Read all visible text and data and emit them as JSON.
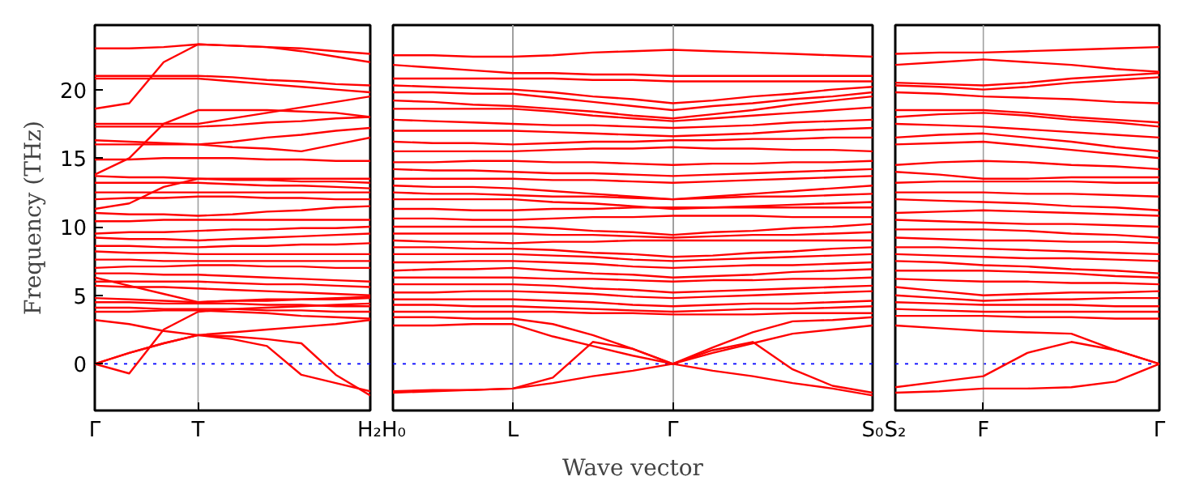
{
  "chart_data": [
    {
      "type": "line",
      "ylabel": "Frequency (THz)",
      "categories": [
        "Γ",
        null,
        null,
        "T",
        null,
        null,
        null,
        null,
        "H₂"
      ],
      "ylim": [
        -3.4,
        24.7
      ],
      "yticks": [
        0,
        5,
        10,
        15,
        20
      ],
      "ref_lines": [
        {
          "axis": "y",
          "value": 0,
          "label": null,
          "color": "#0000ff",
          "line_style": "dotted"
        },
        {
          "axis": "x",
          "value": "T",
          "label": null,
          "color": "#a0a0a0",
          "line_style": "solid"
        }
      ],
      "series": [
        {
          "color": "#ff0000",
          "values": [
            0,
            -0.7,
            2.5,
            3.8,
            4.0,
            4.1,
            4.2,
            4.3,
            4.4
          ]
        },
        {
          "color": "#ff0000",
          "values": [
            0,
            0.8,
            1.5,
            2.1,
            2.3,
            2.5,
            2.7,
            2.9,
            3.2
          ]
        },
        {
          "color": "#ff0000",
          "values": [
            3.2,
            2.9,
            2.4,
            2.1,
            1.8,
            1.3,
            -0.8,
            -1.4,
            -2.0
          ]
        },
        {
          "color": "#ff0000",
          "values": [
            0,
            0.8,
            1.5,
            2.1,
            2.0,
            1.8,
            1.5,
            -0.8,
            -2.3
          ]
        },
        {
          "color": "#ff0000",
          "values": [
            18.6,
            19.0,
            22.0,
            23.3,
            23.2,
            23.1,
            22.8,
            22.4,
            22.0
          ]
        },
        {
          "color": "#ff0000",
          "values": [
            23.0,
            23.0,
            23.1,
            23.3,
            23.2,
            23.1,
            23.0,
            22.8,
            22.6
          ]
        },
        {
          "color": "#ff0000",
          "values": [
            13.8,
            15.0,
            17.5,
            18.5,
            18.5,
            18.5,
            18.4,
            18.3,
            18.0
          ]
        },
        {
          "color": "#ff0000",
          "values": [
            11.3,
            11.7,
            12.9,
            13.5,
            13.4,
            13.4,
            13.3,
            13.3,
            13.2
          ]
        },
        {
          "color": "#ff0000",
          "values": [
            21.0,
            21.0,
            21.0,
            21.0,
            20.9,
            20.7,
            20.6,
            20.4,
            20.3
          ]
        },
        {
          "color": "#ff0000",
          "values": [
            20.8,
            20.8,
            20.8,
            20.8,
            20.6,
            20.4,
            20.2,
            20.0,
            19.8
          ]
        },
        {
          "color": "#ff0000",
          "values": [
            17.5,
            17.5,
            17.5,
            17.5,
            17.9,
            18.3,
            18.7,
            19.1,
            19.5
          ]
        },
        {
          "color": "#ff0000",
          "values": [
            17.3,
            17.3,
            17.3,
            17.3,
            17.4,
            17.6,
            17.7,
            17.9,
            18.0
          ]
        },
        {
          "color": "#ff0000",
          "values": [
            16.3,
            16.2,
            16.1,
            16.0,
            16.2,
            16.5,
            16.7,
            17.0,
            17.2
          ]
        },
        {
          "color": "#ff0000",
          "values": [
            16.0,
            16.0,
            16.0,
            16.0,
            15.8,
            15.7,
            15.5,
            16.0,
            16.5
          ]
        },
        {
          "color": "#ff0000",
          "values": [
            14.9,
            14.9,
            15.0,
            15.0,
            15.0,
            14.9,
            14.9,
            14.8,
            14.8
          ]
        },
        {
          "color": "#ff0000",
          "values": [
            13.7,
            13.6,
            13.6,
            13.5,
            13.5,
            13.5,
            13.5,
            13.5,
            13.5
          ]
        },
        {
          "color": "#ff0000",
          "values": [
            13.2,
            13.2,
            13.2,
            13.2,
            13.1,
            13.0,
            13.0,
            12.9,
            12.8
          ]
        },
        {
          "color": "#ff0000",
          "values": [
            12.5,
            12.5,
            12.5,
            12.5,
            12.5,
            12.5,
            12.5,
            12.5,
            12.5
          ]
        },
        {
          "color": "#ff0000",
          "values": [
            12.0,
            12.1,
            12.1,
            12.2,
            12.2,
            12.1,
            12.1,
            12.0,
            12.0
          ]
        },
        {
          "color": "#ff0000",
          "values": [
            11.0,
            10.9,
            10.9,
            10.8,
            10.9,
            11.1,
            11.2,
            11.4,
            11.5
          ]
        },
        {
          "color": "#ff0000",
          "values": [
            10.4,
            10.4,
            10.5,
            10.5,
            10.5,
            10.5,
            10.5,
            10.5,
            10.5
          ]
        },
        {
          "color": "#ff0000",
          "values": [
            9.5,
            9.6,
            9.6,
            9.7,
            9.8,
            9.8,
            9.9,
            9.9,
            10.0
          ]
        },
        {
          "color": "#ff0000",
          "values": [
            9.2,
            9.1,
            9.1,
            9.0,
            9.1,
            9.2,
            9.3,
            9.4,
            9.5
          ]
        },
        {
          "color": "#ff0000",
          "values": [
            8.6,
            8.6,
            8.5,
            8.5,
            8.6,
            8.6,
            8.7,
            8.7,
            8.8
          ]
        },
        {
          "color": "#ff0000",
          "values": [
            8.2,
            8.1,
            8.1,
            8.0,
            8.0,
            8.0,
            8.0,
            8.0,
            8.0
          ]
        },
        {
          "color": "#ff0000",
          "values": [
            7.6,
            7.6,
            7.5,
            7.5,
            7.5,
            7.5,
            7.5,
            7.5,
            7.5
          ]
        },
        {
          "color": "#ff0000",
          "values": [
            7.0,
            7.1,
            7.1,
            7.2,
            7.2,
            7.1,
            7.1,
            7.0,
            7.0
          ]
        },
        {
          "color": "#ff0000",
          "values": [
            6.6,
            6.6,
            6.5,
            6.5,
            6.4,
            6.3,
            6.2,
            6.1,
            6.0
          ]
        },
        {
          "color": "#ff0000",
          "values": [
            6.0,
            6.0,
            6.0,
            6.0,
            5.9,
            5.8,
            5.8,
            5.7,
            5.6
          ]
        },
        {
          "color": "#ff0000",
          "values": [
            5.7,
            5.6,
            5.6,
            5.5,
            5.4,
            5.3,
            5.2,
            5.1,
            5.0
          ]
        },
        {
          "color": "#ff0000",
          "values": [
            6.3,
            5.7,
            5.1,
            4.5,
            4.6,
            4.7,
            4.7,
            4.8,
            4.9
          ]
        },
        {
          "color": "#ff0000",
          "values": [
            4.8,
            4.7,
            4.6,
            4.5,
            4.6,
            4.6,
            4.7,
            4.7,
            4.8
          ]
        },
        {
          "color": "#ff0000",
          "values": [
            4.5,
            4.5,
            4.4,
            4.4,
            4.4,
            4.3,
            4.3,
            4.2,
            4.2
          ]
        },
        {
          "color": "#ff0000",
          "values": [
            4.1,
            4.1,
            4.0,
            4.0,
            4.0,
            3.9,
            3.9,
            3.8,
            3.8
          ]
        },
        {
          "color": "#ff0000",
          "values": [
            3.8,
            3.8,
            3.9,
            3.9,
            3.8,
            3.7,
            3.5,
            3.4,
            3.3
          ]
        }
      ]
    },
    {
      "type": "line",
      "xlabel": "Wave vector",
      "tick_labels": "x",
      "categories": [
        "H₀",
        null,
        null,
        "L",
        null,
        null,
        null,
        "Γ",
        null,
        null,
        null,
        null,
        "S₀"
      ],
      "ylim": [
        -3.4,
        24.7
      ],
      "yticks": [
        0,
        5,
        10,
        15,
        20
      ],
      "grid": "x",
      "ref_lines": [
        {
          "axis": "y",
          "value": 0,
          "label": null,
          "color": "#0000ff",
          "line_style": "dotted"
        }
      ],
      "series": [
        {
          "color": "#ff0000",
          "values": [
            -2.0,
            -1.9,
            -1.9,
            -1.8,
            -1.0,
            1.6,
            1.1,
            0,
            1.0,
            1.6,
            -0.4,
            -1.6,
            -2.1
          ]
        },
        {
          "color": "#ff0000",
          "values": [
            -2.1,
            -2.0,
            -1.9,
            -1.8,
            -1.4,
            -0.9,
            -0.5,
            0,
            -0.5,
            -0.9,
            -1.4,
            -1.8,
            -2.3
          ]
        },
        {
          "color": "#ff0000",
          "values": [
            2.8,
            2.8,
            2.9,
            2.9,
            2.0,
            1.3,
            0.6,
            0,
            0.8,
            1.5,
            2.2,
            2.5,
            2.8
          ]
        },
        {
          "color": "#ff0000",
          "values": [
            3.4,
            3.4,
            3.3,
            3.3,
            2.9,
            2.1,
            1.1,
            0,
            1.2,
            2.3,
            3.1,
            3.2,
            3.4
          ]
        },
        {
          "color": "#ff0000",
          "values": [
            22.5,
            22.5,
            22.4,
            22.4,
            22.5,
            22.7,
            22.8,
            22.9,
            22.8,
            22.7,
            22.6,
            22.5,
            22.4
          ]
        },
        {
          "color": "#ff0000",
          "values": [
            21.8,
            21.6,
            21.4,
            21.2,
            21.2,
            21.1,
            21.1,
            21.0,
            21.0,
            21.0,
            21.0,
            21.0,
            21.0
          ]
        },
        {
          "color": "#ff0000",
          "values": [
            20.8,
            20.8,
            20.8,
            20.8,
            20.8,
            20.7,
            20.7,
            20.6,
            20.6,
            20.6,
            20.6,
            20.6,
            20.6
          ]
        },
        {
          "color": "#ff0000",
          "values": [
            20.3,
            20.2,
            20.1,
            20.0,
            19.8,
            19.5,
            19.3,
            19.0,
            19.2,
            19.5,
            19.7,
            20.0,
            20.2
          ]
        },
        {
          "color": "#ff0000",
          "values": [
            19.8,
            19.8,
            19.7,
            19.7,
            19.4,
            19.1,
            18.8,
            18.5,
            18.8,
            19.0,
            19.3,
            19.5,
            19.8
          ]
        },
        {
          "color": "#ff0000",
          "values": [
            19.2,
            19.1,
            18.9,
            18.8,
            18.6,
            18.4,
            18.1,
            17.9,
            18.2,
            18.5,
            18.9,
            19.2,
            19.5
          ]
        },
        {
          "color": "#ff0000",
          "values": [
            18.6,
            18.6,
            18.6,
            18.6,
            18.4,
            18.1,
            17.9,
            17.7,
            17.9,
            18.1,
            18.3,
            18.5,
            18.7
          ]
        },
        {
          "color": "#ff0000",
          "values": [
            17.8,
            17.7,
            17.6,
            17.5,
            17.4,
            17.4,
            17.3,
            17.2,
            17.3,
            17.4,
            17.6,
            17.7,
            17.8
          ]
        },
        {
          "color": "#ff0000",
          "values": [
            17.0,
            17.0,
            17.0,
            17.0,
            16.9,
            16.8,
            16.7,
            16.6,
            16.7,
            16.8,
            17.0,
            17.1,
            17.2
          ]
        },
        {
          "color": "#ff0000",
          "values": [
            16.2,
            16.1,
            16.1,
            16.0,
            16.1,
            16.2,
            16.2,
            16.3,
            16.3,
            16.4,
            16.4,
            16.5,
            16.5
          ]
        },
        {
          "color": "#ff0000",
          "values": [
            15.5,
            15.5,
            15.5,
            15.5,
            15.6,
            15.7,
            15.7,
            15.8,
            15.7,
            15.7,
            15.6,
            15.6,
            15.5
          ]
        },
        {
          "color": "#ff0000",
          "values": [
            14.7,
            14.7,
            14.8,
            14.8,
            14.7,
            14.7,
            14.6,
            14.5,
            14.6,
            14.6,
            14.7,
            14.7,
            14.8
          ]
        },
        {
          "color": "#ff0000",
          "values": [
            14.2,
            14.1,
            14.1,
            14.0,
            13.9,
            13.9,
            13.8,
            13.7,
            13.8,
            13.9,
            14.0,
            14.1,
            14.2
          ]
        },
        {
          "color": "#ff0000",
          "values": [
            13.5,
            13.5,
            13.5,
            13.5,
            13.4,
            13.4,
            13.3,
            13.2,
            13.3,
            13.4,
            13.5,
            13.6,
            13.7
          ]
        },
        {
          "color": "#ff0000",
          "values": [
            13.0,
            12.9,
            12.9,
            12.8,
            12.6,
            12.4,
            12.2,
            12.0,
            12.2,
            12.4,
            12.6,
            12.8,
            13.0
          ]
        },
        {
          "color": "#ff0000",
          "values": [
            12.5,
            12.4,
            12.4,
            12.3,
            12.2,
            12.2,
            12.1,
            12.0,
            12.1,
            12.2,
            12.2,
            12.3,
            12.4
          ]
        },
        {
          "color": "#ff0000",
          "values": [
            12.0,
            12.0,
            12.0,
            12.0,
            11.8,
            11.7,
            11.5,
            11.3,
            11.4,
            11.5,
            11.6,
            11.7,
            11.8
          ]
        },
        {
          "color": "#ff0000",
          "values": [
            11.3,
            11.3,
            11.2,
            11.2,
            11.3,
            11.3,
            11.4,
            11.4,
            11.4,
            11.4,
            11.4,
            11.4,
            11.4
          ]
        },
        {
          "color": "#ff0000",
          "values": [
            10.6,
            10.6,
            10.5,
            10.5,
            10.6,
            10.7,
            10.7,
            10.8,
            10.8,
            10.8,
            10.7,
            10.7,
            10.7
          ]
        },
        {
          "color": "#ff0000",
          "values": [
            10.0,
            10.0,
            10.0,
            10.0,
            9.9,
            9.7,
            9.6,
            9.4,
            9.6,
            9.7,
            9.9,
            10.0,
            10.2
          ]
        },
        {
          "color": "#ff0000",
          "values": [
            9.5,
            9.5,
            9.5,
            9.5,
            9.4,
            9.4,
            9.3,
            9.2,
            9.3,
            9.4,
            9.4,
            9.5,
            9.6
          ]
        },
        {
          "color": "#ff0000",
          "values": [
            9.0,
            8.9,
            8.9,
            8.8,
            8.9,
            8.9,
            9.0,
            9.0,
            9.0,
            9.0,
            9.0,
            9.0,
            9.0
          ]
        },
        {
          "color": "#ff0000",
          "values": [
            8.5,
            8.5,
            8.4,
            8.4,
            8.3,
            8.1,
            8.0,
            7.8,
            7.9,
            8.1,
            8.2,
            8.4,
            8.5
          ]
        },
        {
          "color": "#ff0000",
          "values": [
            8.0,
            8.0,
            8.0,
            8.0,
            7.9,
            7.8,
            7.6,
            7.5,
            7.6,
            7.7,
            7.8,
            7.9,
            8.0
          ]
        },
        {
          "color": "#ff0000",
          "values": [
            7.4,
            7.4,
            7.5,
            7.5,
            7.4,
            7.3,
            7.1,
            7.0,
            7.1,
            7.2,
            7.2,
            7.3,
            7.4
          ]
        },
        {
          "color": "#ff0000",
          "values": [
            6.8,
            6.9,
            6.9,
            7.0,
            6.8,
            6.6,
            6.5,
            6.3,
            6.4,
            6.5,
            6.7,
            6.8,
            6.9
          ]
        },
        {
          "color": "#ff0000",
          "values": [
            6.3,
            6.3,
            6.3,
            6.3,
            6.2,
            6.2,
            6.1,
            6.0,
            6.1,
            6.1,
            6.2,
            6.2,
            6.3
          ]
        },
        {
          "color": "#ff0000",
          "values": [
            5.8,
            5.8,
            5.8,
            5.8,
            5.7,
            5.5,
            5.4,
            5.2,
            5.3,
            5.4,
            5.5,
            5.6,
            5.7
          ]
        },
        {
          "color": "#ff0000",
          "values": [
            5.2,
            5.2,
            5.3,
            5.3,
            5.2,
            5.1,
            4.9,
            4.8,
            4.9,
            5.0,
            5.1,
            5.2,
            5.3
          ]
        },
        {
          "color": "#ff0000",
          "values": [
            4.7,
            4.7,
            4.7,
            4.7,
            4.6,
            4.5,
            4.3,
            4.2,
            4.3,
            4.4,
            4.4,
            4.5,
            4.6
          ]
        },
        {
          "color": "#ff0000",
          "values": [
            4.3,
            4.3,
            4.2,
            4.2,
            4.1,
            4.0,
            3.9,
            3.8,
            3.9,
            4.0,
            4.0,
            4.1,
            4.2
          ]
        },
        {
          "color": "#ff0000",
          "values": [
            3.8,
            3.8,
            3.8,
            3.8,
            3.8,
            3.7,
            3.7,
            3.6,
            3.6,
            3.6,
            3.7,
            3.7,
            3.7
          ]
        }
      ]
    },
    {
      "type": "line",
      "tick_labels": "x",
      "categories": [
        "S₂",
        null,
        "F",
        null,
        null,
        null,
        "Γ"
      ],
      "ylim": [
        -3.4,
        24.7
      ],
      "yticks": [
        0,
        5,
        10,
        15,
        20
      ],
      "ref_lines": [
        {
          "axis": "y",
          "value": 0,
          "label": null,
          "color": "#0000ff",
          "line_style": "dotted"
        },
        {
          "axis": "x",
          "value": "F",
          "label": null,
          "color": "#a0a0a0",
          "line_style": "solid"
        }
      ],
      "series": [
        {
          "color": "#ff0000",
          "values": [
            -2.1,
            -2.0,
            -1.8,
            -1.8,
            -1.7,
            -1.3,
            0
          ]
        },
        {
          "color": "#ff0000",
          "values": [
            -1.7,
            -1.3,
            -0.9,
            0.8,
            1.6,
            1.0,
            0
          ]
        },
        {
          "color": "#ff0000",
          "values": [
            2.8,
            2.6,
            2.4,
            2.3,
            2.2,
            1.0,
            0
          ]
        },
        {
          "color": "#ff0000",
          "values": [
            22.6,
            22.7,
            22.7,
            22.8,
            22.9,
            23.0,
            23.1
          ]
        },
        {
          "color": "#ff0000",
          "values": [
            21.8,
            22.0,
            22.2,
            22.0,
            21.8,
            21.5,
            21.3
          ]
        },
        {
          "color": "#ff0000",
          "values": [
            20.5,
            20.4,
            20.3,
            20.5,
            20.8,
            21.0,
            21.2
          ]
        },
        {
          "color": "#ff0000",
          "values": [
            20.3,
            20.2,
            20.0,
            20.2,
            20.5,
            20.7,
            20.9
          ]
        },
        {
          "color": "#ff0000",
          "values": [
            19.8,
            19.7,
            19.5,
            19.4,
            19.3,
            19.1,
            19.0
          ]
        },
        {
          "color": "#ff0000",
          "values": [
            18.5,
            18.5,
            18.5,
            18.3,
            18.0,
            17.8,
            17.6
          ]
        },
        {
          "color": "#ff0000",
          "values": [
            18.0,
            18.2,
            18.3,
            18.1,
            17.8,
            17.6,
            17.3
          ]
        },
        {
          "color": "#ff0000",
          "values": [
            17.5,
            17.4,
            17.3,
            17.1,
            16.9,
            16.7,
            16.5
          ]
        },
        {
          "color": "#ff0000",
          "values": [
            16.5,
            16.7,
            16.8,
            16.5,
            16.2,
            15.8,
            15.5
          ]
        },
        {
          "color": "#ff0000",
          "values": [
            16.0,
            16.1,
            16.2,
            15.9,
            15.6,
            15.3,
            15.0
          ]
        },
        {
          "color": "#ff0000",
          "values": [
            14.5,
            14.7,
            14.8,
            14.7,
            14.5,
            14.4,
            14.2
          ]
        },
        {
          "color": "#ff0000",
          "values": [
            14.0,
            13.8,
            13.5,
            13.5,
            13.6,
            13.6,
            13.6
          ]
        },
        {
          "color": "#ff0000",
          "values": [
            13.2,
            13.3,
            13.3,
            13.3,
            13.3,
            13.2,
            13.2
          ]
        },
        {
          "color": "#ff0000",
          "values": [
            12.5,
            12.5,
            12.5,
            12.4,
            12.4,
            12.3,
            12.2
          ]
        },
        {
          "color": "#ff0000",
          "values": [
            12.0,
            11.9,
            11.8,
            11.7,
            11.5,
            11.4,
            11.2
          ]
        },
        {
          "color": "#ff0000",
          "values": [
            11.0,
            11.1,
            11.2,
            11.1,
            11.0,
            10.9,
            10.8
          ]
        },
        {
          "color": "#ff0000",
          "values": [
            10.5,
            10.4,
            10.3,
            10.2,
            10.2,
            10.1,
            10.0
          ]
        },
        {
          "color": "#ff0000",
          "values": [
            9.8,
            9.8,
            9.8,
            9.7,
            9.5,
            9.4,
            9.2
          ]
        },
        {
          "color": "#ff0000",
          "values": [
            9.2,
            9.1,
            9.0,
            9.0,
            8.9,
            8.9,
            8.8
          ]
        },
        {
          "color": "#ff0000",
          "values": [
            8.5,
            8.5,
            8.4,
            8.3,
            8.2,
            8.1,
            8.0
          ]
        },
        {
          "color": "#ff0000",
          "values": [
            8.0,
            7.9,
            7.8,
            7.7,
            7.7,
            7.6,
            7.5
          ]
        },
        {
          "color": "#ff0000",
          "values": [
            7.5,
            7.4,
            7.2,
            7.1,
            6.9,
            6.8,
            6.6
          ]
        },
        {
          "color": "#ff0000",
          "values": [
            6.8,
            6.8,
            6.8,
            6.7,
            6.6,
            6.4,
            6.3
          ]
        },
        {
          "color": "#ff0000",
          "values": [
            6.2,
            6.1,
            6.0,
            6.0,
            5.9,
            5.9,
            5.8
          ]
        },
        {
          "color": "#ff0000",
          "values": [
            5.6,
            5.3,
            5.0,
            5.1,
            5.2,
            5.2,
            5.3
          ]
        },
        {
          "color": "#ff0000",
          "values": [
            5.0,
            4.8,
            4.6,
            4.7,
            4.7,
            4.8,
            4.8
          ]
        },
        {
          "color": "#ff0000",
          "values": [
            4.5,
            4.4,
            4.3,
            4.3,
            4.3,
            4.2,
            4.2
          ]
        },
        {
          "color": "#ff0000",
          "values": [
            4.0,
            3.9,
            3.8,
            3.8,
            3.8,
            3.8,
            3.8
          ]
        },
        {
          "color": "#ff0000",
          "values": [
            3.5,
            3.5,
            3.5,
            3.4,
            3.4,
            3.3,
            3.3
          ]
        }
      ]
    }
  ]
}
